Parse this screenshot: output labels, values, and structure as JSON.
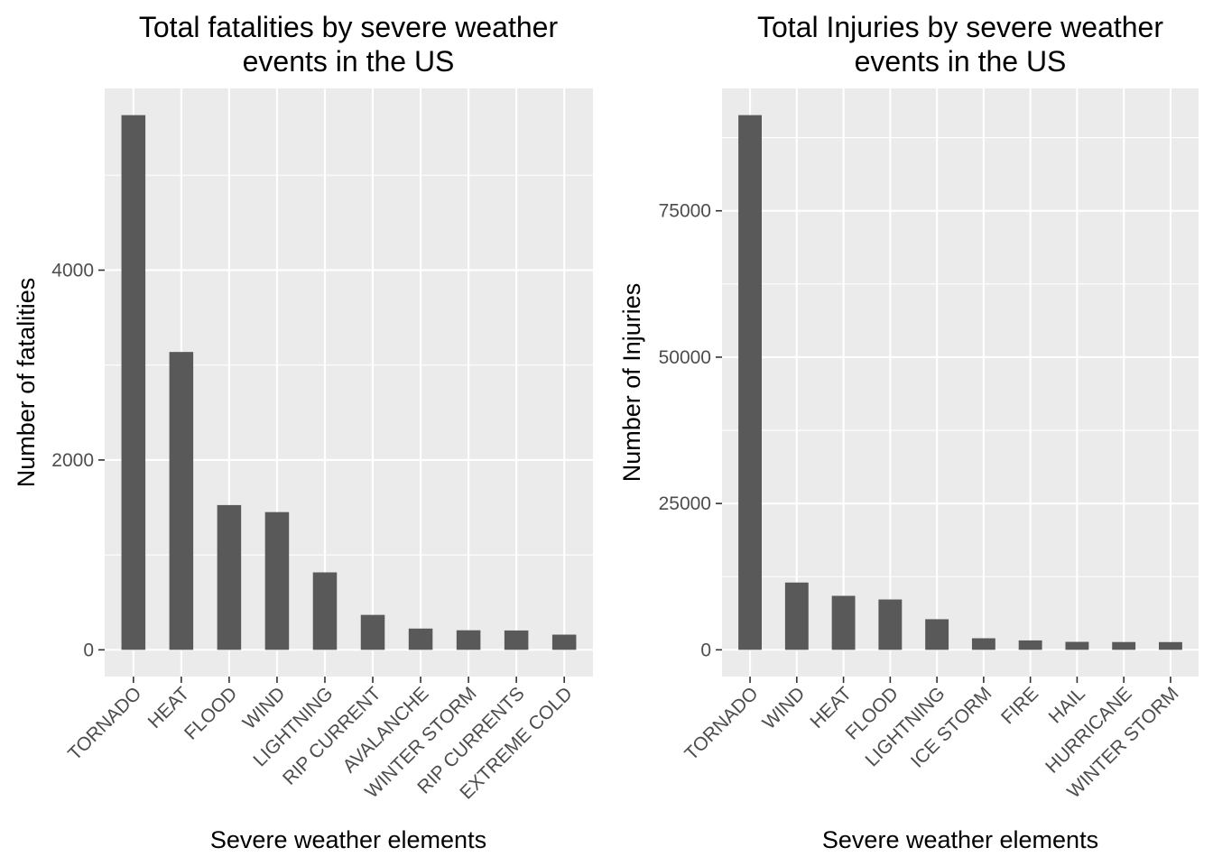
{
  "chart_data": [
    {
      "type": "bar",
      "title_lines": [
        "Total fatalities by severe weather",
        "events in the US"
      ],
      "xlabel": "Severe weather elements",
      "ylabel": "Number of fatalities",
      "categories": [
        "TORNADO",
        "HEAT",
        "FLOOD",
        "WIND",
        "LIGHTNING",
        "RIP CURRENT",
        "AVALANCHE",
        "WINTER STORM",
        "RIP CURRENTS",
        "EXTREME COLD"
      ],
      "values": [
        5633,
        3138,
        1525,
        1451,
        816,
        368,
        224,
        206,
        204,
        160
      ],
      "yticks": [
        0,
        2000,
        4000
      ],
      "ytick_labels": [
        "0",
        "2000",
        "4000"
      ],
      "ylim": [
        -281.65,
        5914.65
      ],
      "grid": true,
      "bar_color": "#595959",
      "panel_color": "#ebebeb"
    },
    {
      "type": "bar",
      "title_lines": [
        "Total Injuries by severe weather",
        "events in the US"
      ],
      "xlabel": "Severe weather elements",
      "ylabel": "Number of Injuries",
      "categories": [
        "TORNADO",
        "WIND",
        "HEAT",
        "FLOOD",
        "LIGHTNING",
        "ICE STORM",
        "FIRE",
        "HAIL",
        "HURRICANE",
        "WINTER STORM"
      ],
      "values": [
        91346,
        11498,
        9224,
        8603,
        5230,
        1975,
        1608,
        1361,
        1333,
        1321
      ],
      "yticks": [
        0,
        25000,
        50000,
        75000
      ],
      "ytick_labels": [
        "0",
        "25000",
        "50000",
        "75000"
      ],
      "ylim": [
        -4567.3,
        95913.3
      ],
      "grid": true,
      "bar_color": "#595959",
      "panel_color": "#ebebeb"
    }
  ]
}
